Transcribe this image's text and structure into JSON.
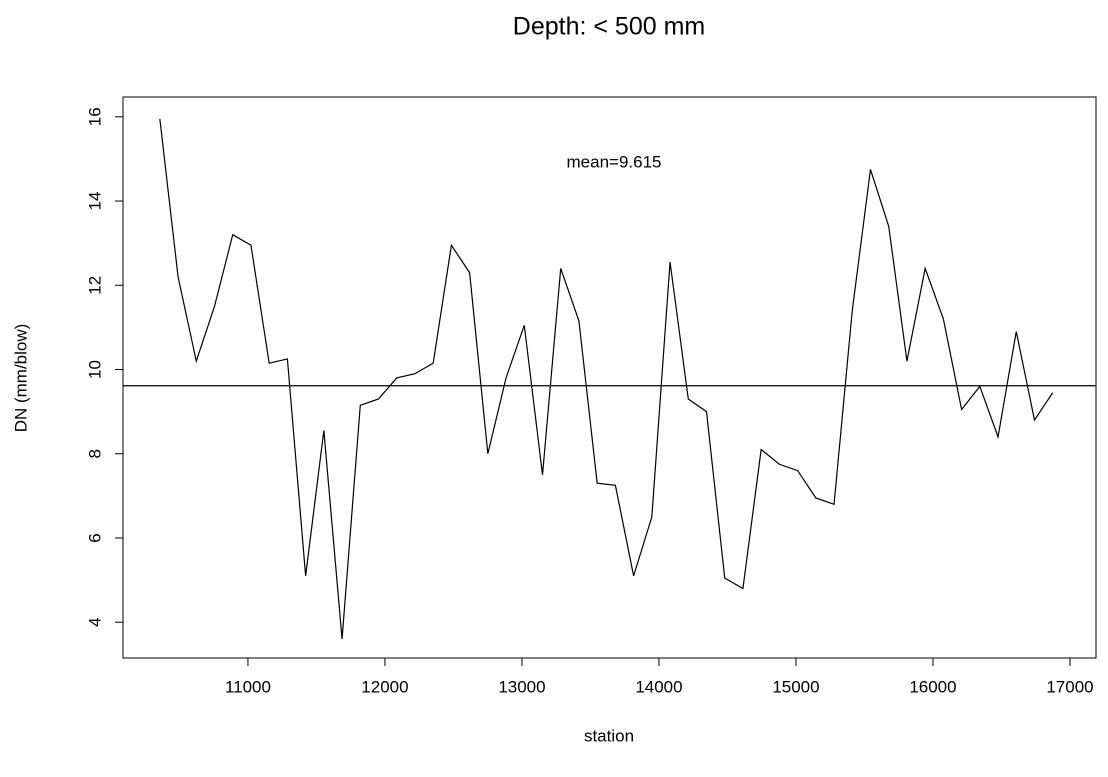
{
  "chart_data": {
    "type": "line",
    "title": "Depth: < 500 mm",
    "x_label": "station",
    "y_label": "DN (mm/blow)",
    "x": [
      10357,
      10490,
      10623,
      10756,
      10889,
      11022,
      11155,
      11288,
      11421,
      11554,
      11687,
      11820,
      11953,
      12086,
      12219,
      12352,
      12485,
      12618,
      12751,
      12884,
      13017,
      13150,
      13283,
      13416,
      13549,
      13682,
      13815,
      13948,
      14081,
      14214,
      14347,
      14480,
      14613,
      14746,
      14879,
      15012,
      15145,
      15278,
      15411,
      15544,
      15677,
      15810,
      15943,
      16076,
      16209,
      16342,
      16475,
      16608,
      16741,
      16874
    ],
    "values": [
      15.95,
      12.2,
      10.2,
      11.5,
      13.2,
      12.95,
      10.15,
      10.25,
      5.1,
      8.55,
      3.6,
      9.15,
      9.3,
      9.8,
      9.9,
      10.15,
      12.95,
      12.3,
      8.0,
      9.8,
      11.05,
      7.5,
      12.4,
      11.15,
      7.3,
      7.25,
      5.1,
      6.5,
      12.55,
      9.3,
      9.0,
      5.05,
      4.8,
      8.1,
      7.75,
      7.6,
      6.95,
      6.8,
      11.4,
      14.75,
      13.4,
      10.2,
      12.4,
      11.2,
      9.05,
      9.6,
      8.4,
      10.9,
      8.8,
      9.45
    ],
    "color": "#000000",
    "mean": 9.615,
    "annotation": "mean=9.615",
    "xlim": [
      10088,
      17190
    ],
    "ylim": [
      3.15,
      16.47
    ],
    "xticks": [
      11000,
      12000,
      13000,
      14000,
      15000,
      16000,
      17000
    ],
    "yticks": [
      4,
      6,
      8,
      10,
      12,
      14,
      16
    ],
    "grid": false
  }
}
